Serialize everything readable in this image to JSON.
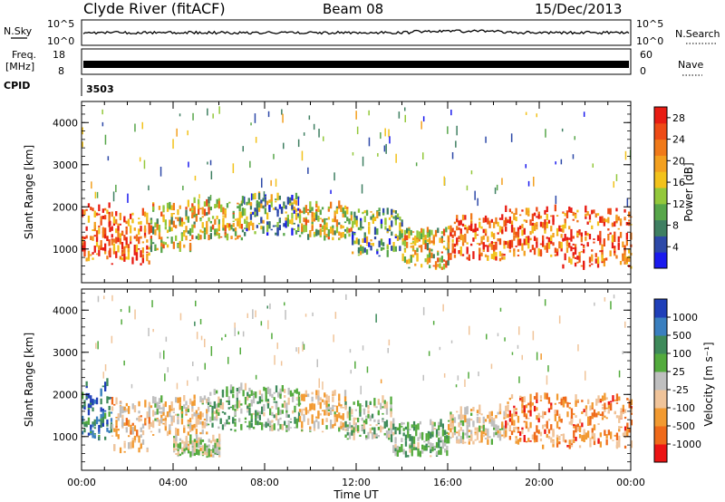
{
  "header": {
    "station": "Clyde River (fitACF)",
    "beam": "Beam 08",
    "date": "15/Dec/2013"
  },
  "top_panels": {
    "nsky_label": "N.Sky",
    "nsky_ticks": [
      "10^5",
      "10^0"
    ],
    "nsearch_label": "N.Search",
    "nsearch_ticks": [
      "10^5",
      "10^0"
    ],
    "freq_label": "Freq.",
    "freq_unit": "[MHz]",
    "freq_ticks": [
      "18",
      "8"
    ],
    "nave_label": "Nave",
    "nave_ticks": [
      "60",
      "0"
    ],
    "cpid_label": "CPID",
    "cpid_value": "3503"
  },
  "colors": {
    "power_scale": [
      "#1a1aee",
      "#2d49a8",
      "#3f7f62",
      "#57a64a",
      "#93c83b",
      "#f2c21b",
      "#f3a01f",
      "#f07a1a",
      "#ee4b16",
      "#e81c13"
    ],
    "velocity_scale": [
      "#1f3fb8",
      "#3a7fbf",
      "#3e8a5a",
      "#53ab3d",
      "#bfbfbf",
      "#f0c49a",
      "#f29a31",
      "#ef6a1a",
      "#ec1414"
    ]
  },
  "chart_data": [
    {
      "type": "heatmap",
      "panel": "power",
      "ylabel": "Slant Range [km]",
      "xlabel": "",
      "x_ticks": [],
      "y_ticks": [
        "1000",
        "2000",
        "3000",
        "4000"
      ],
      "ylim": [
        200,
        4500
      ],
      "colorbar_label": "Power [dB]",
      "colorbar_ticks": [
        "4",
        "8",
        "12",
        "16",
        "20",
        "24",
        "28"
      ],
      "colorbar_range": [
        0,
        30
      ],
      "echo_bands": [
        {
          "t": [
            0.0,
            1.2
          ],
          "r": [
            700,
            2000
          ],
          "level": "high"
        },
        {
          "t": [
            1.2,
            3.0
          ],
          "r": [
            600,
            1800
          ],
          "level": "high"
        },
        {
          "t": [
            3.0,
            4.8
          ],
          "r": [
            900,
            2000
          ],
          "level": "mid"
        },
        {
          "t": [
            4.8,
            7.0
          ],
          "r": [
            1200,
            2100
          ],
          "level": "mid"
        },
        {
          "t": [
            7.0,
            9.5
          ],
          "r": [
            1300,
            2200
          ],
          "level": "low"
        },
        {
          "t": [
            9.5,
            11.8
          ],
          "r": [
            1200,
            2000
          ],
          "level": "mid"
        },
        {
          "t": [
            11.8,
            14.0
          ],
          "r": [
            800,
            1900
          ],
          "level": "low"
        },
        {
          "t": [
            14.0,
            16.0
          ],
          "r": [
            500,
            1400
          ],
          "level": "mid"
        },
        {
          "t": [
            16.0,
            18.5
          ],
          "r": [
            700,
            1700
          ],
          "level": "high"
        },
        {
          "t": [
            18.5,
            21.0
          ],
          "r": [
            800,
            1900
          ],
          "level": "high"
        },
        {
          "t": [
            21.0,
            24.0
          ],
          "r": [
            500,
            1900
          ],
          "level": "high"
        }
      ]
    },
    {
      "type": "heatmap",
      "panel": "velocity",
      "ylabel": "Slant Range [km]",
      "xlabel": "Time UT",
      "x_ticks": [
        "00:00",
        "04:00",
        "08:00",
        "12:00",
        "16:00",
        "20:00",
        "00:00"
      ],
      "y_ticks": [
        "1000",
        "2000",
        "3000",
        "4000"
      ],
      "ylim": [
        200,
        4500
      ],
      "colorbar_label": "Velocity [m s⁻¹]",
      "colorbar_ticks": [
        "1000",
        "500",
        "100",
        "25",
        "-25",
        "-100",
        "-500",
        "-1000"
      ],
      "colorbar_range": [
        -1000,
        1000
      ],
      "echo_bands": [
        {
          "t": [
            0.0,
            1.3
          ],
          "r": [
            900,
            2200
          ],
          "vel": 600
        },
        {
          "t": [
            1.3,
            3.0
          ],
          "r": [
            600,
            1800
          ],
          "vel": -300
        },
        {
          "t": [
            3.0,
            5.5
          ],
          "r": [
            1000,
            1900
          ],
          "vel": -200
        },
        {
          "t": [
            5.5,
            9.5
          ],
          "r": [
            1100,
            2100
          ],
          "vel": 150
        },
        {
          "t": [
            9.5,
            11.5
          ],
          "r": [
            1100,
            2000
          ],
          "vel": -200
        },
        {
          "t": [
            11.5,
            13.5
          ],
          "r": [
            900,
            1800
          ],
          "vel": 80
        },
        {
          "t": [
            13.5,
            16.0
          ],
          "r": [
            500,
            1300
          ],
          "vel": 200
        },
        {
          "t": [
            16.0,
            18.5
          ],
          "r": [
            800,
            1600
          ],
          "vel": -150
        },
        {
          "t": [
            18.5,
            24.0
          ],
          "r": [
            700,
            1900
          ],
          "vel": -500
        },
        {
          "t": [
            4.0,
            6.0
          ],
          "r": [
            500,
            900
          ],
          "vel": 0
        }
      ]
    }
  ]
}
